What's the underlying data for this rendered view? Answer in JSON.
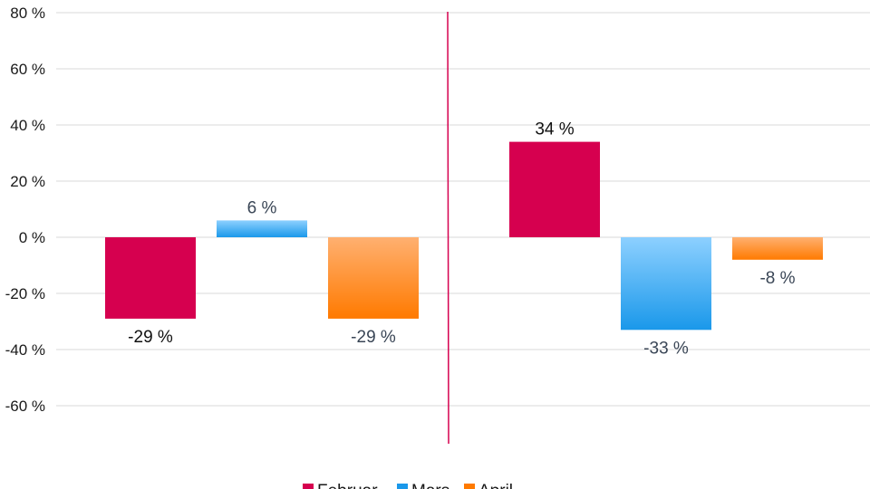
{
  "chart_data": {
    "type": "bar",
    "title": "",
    "xlabel": "",
    "ylabel": "",
    "ylim": [
      -60,
      80
    ],
    "yticks": [
      80,
      60,
      40,
      20,
      0,
      -20,
      -40,
      -60
    ],
    "ytick_labels": [
      "80 %",
      "60 %",
      "40 %",
      "20 %",
      "0 %",
      "-20 %",
      "-40 %",
      "-60 %"
    ],
    "groups": 2,
    "series": [
      {
        "name": "Februar",
        "color": "#d6004f",
        "gradient_end": "#d6004f",
        "label_color": "#111111",
        "values": [
          -29,
          34
        ],
        "labels": [
          "-29 %",
          "34 %"
        ]
      },
      {
        "name": "Mars",
        "color": "#8dd0ff",
        "gradient_end": "#1a98ea",
        "label_color": "#3a4656",
        "values": [
          6,
          -33
        ],
        "labels": [
          "6 %",
          "-33 %"
        ]
      },
      {
        "name": "April",
        "color": "#ffb070",
        "gradient_end": "#ff7a00",
        "label_color": "#3a4656",
        "values": [
          -29,
          -8
        ],
        "labels": [
          "-29 %",
          "-8 %"
        ]
      }
    ],
    "grid": true,
    "divider_color": "#d6004f",
    "legend_position": "bottom"
  }
}
